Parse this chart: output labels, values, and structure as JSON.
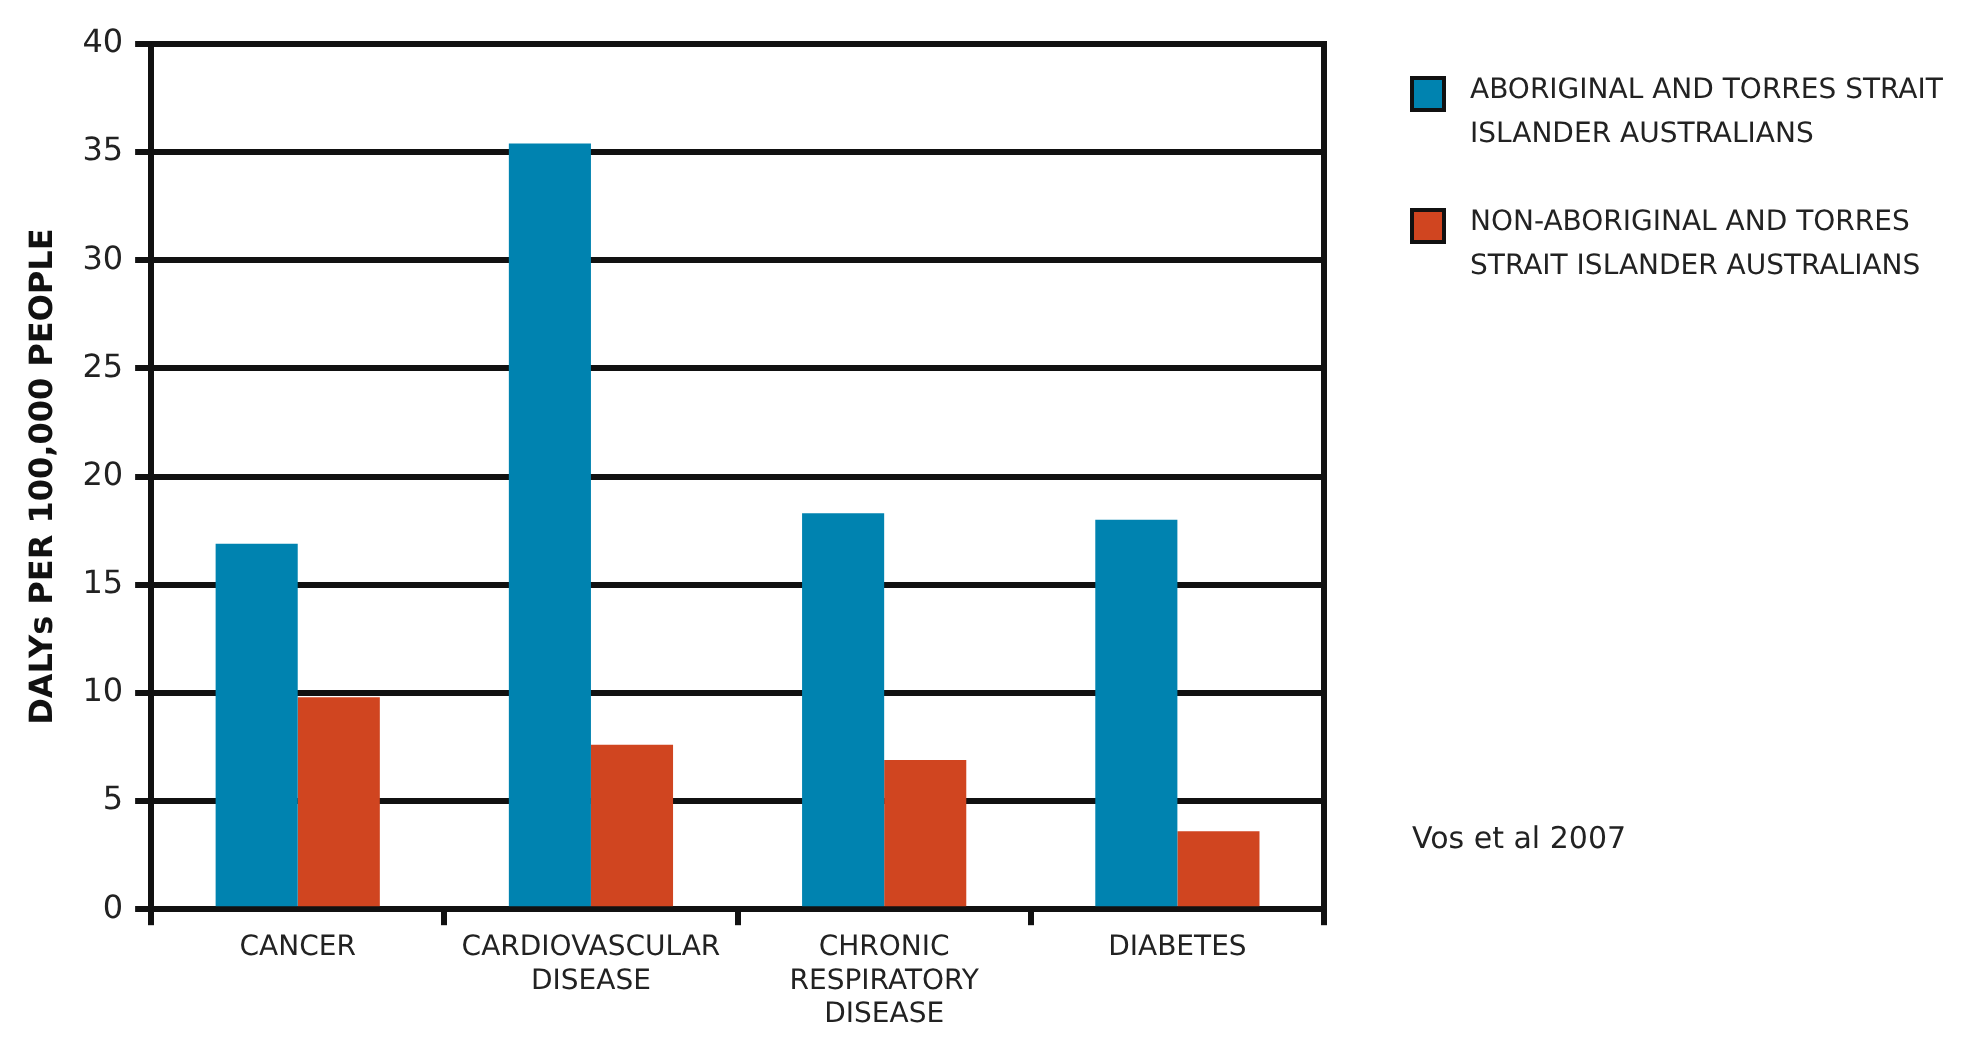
{
  "chart_data": {
    "type": "bar",
    "ylabel": "DALYs PER 100,000 PEOPLE",
    "categories": [
      "CANCER",
      "CARDIOVASCULAR DISEASE",
      "CHRONIC RESPIRATORY DISEASE",
      "DIABETES"
    ],
    "series": [
      {
        "name": "ABORIGINAL AND TORRES STRAIT ISLANDER AUSTRALIANS",
        "color": "#0083b0",
        "values": [
          16.9,
          35.4,
          18.3,
          18.0
        ]
      },
      {
        "name": "NON-ABORIGINAL AND TORRES STRAIT ISLANDER AUSTRALIANS",
        "color": "#d04520",
        "values": [
          9.8,
          7.6,
          6.9,
          3.6
        ]
      }
    ],
    "ylim": [
      0,
      40
    ],
    "yticks": [
      0,
      5,
      10,
      15,
      20,
      25,
      30,
      35,
      40
    ],
    "grid": "y",
    "legend": "top right",
    "annotations": [
      "Vos et al 2007"
    ]
  }
}
